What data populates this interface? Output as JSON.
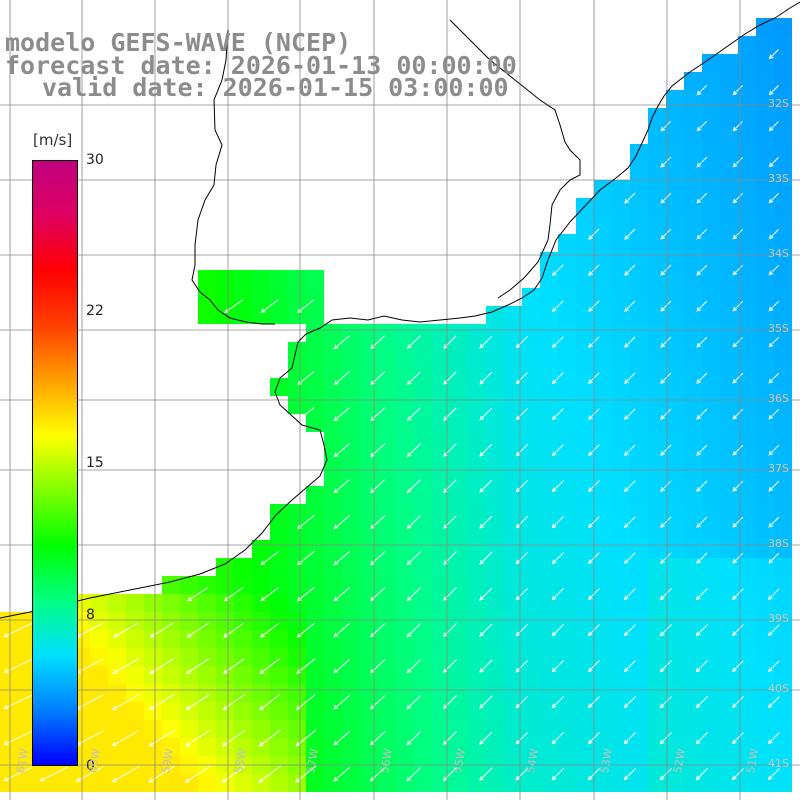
{
  "title": {
    "line1": "modelo GEFS-WAVE (NCEP)",
    "line2": "forecast date: 2026-01-13 00:00:00",
    "line3": "valid date: 2026-01-15 03:00:00"
  },
  "colorbar": {
    "unit": "[m/s]",
    "min": 0,
    "max": 30,
    "ticks": [
      "30",
      "22",
      "15",
      "8",
      "0"
    ],
    "colors": [
      "#0000ff",
      "#0080ff",
      "#00e0ff",
      "#00ff80",
      "#00ff00",
      "#80ff00",
      "#ffff00",
      "#ffa000",
      "#ff4000",
      "#ff0000",
      "#e00060",
      "#c00080"
    ]
  },
  "map": {
    "lat_labels": [
      "32S",
      "33S",
      "34S",
      "35S",
      "36S",
      "37S",
      "38S",
      "39S",
      "40S",
      "41S"
    ],
    "lon_labels": [
      "61W",
      "60W",
      "59W",
      "58W",
      "57W",
      "56W",
      "55W",
      "54W",
      "53W",
      "52W",
      "51W"
    ],
    "wind_direction": "from northeast",
    "colors": {
      "land": "#ffffff",
      "grid": "#888888",
      "coast": "#000000",
      "arrow": "#ffffff"
    }
  }
}
